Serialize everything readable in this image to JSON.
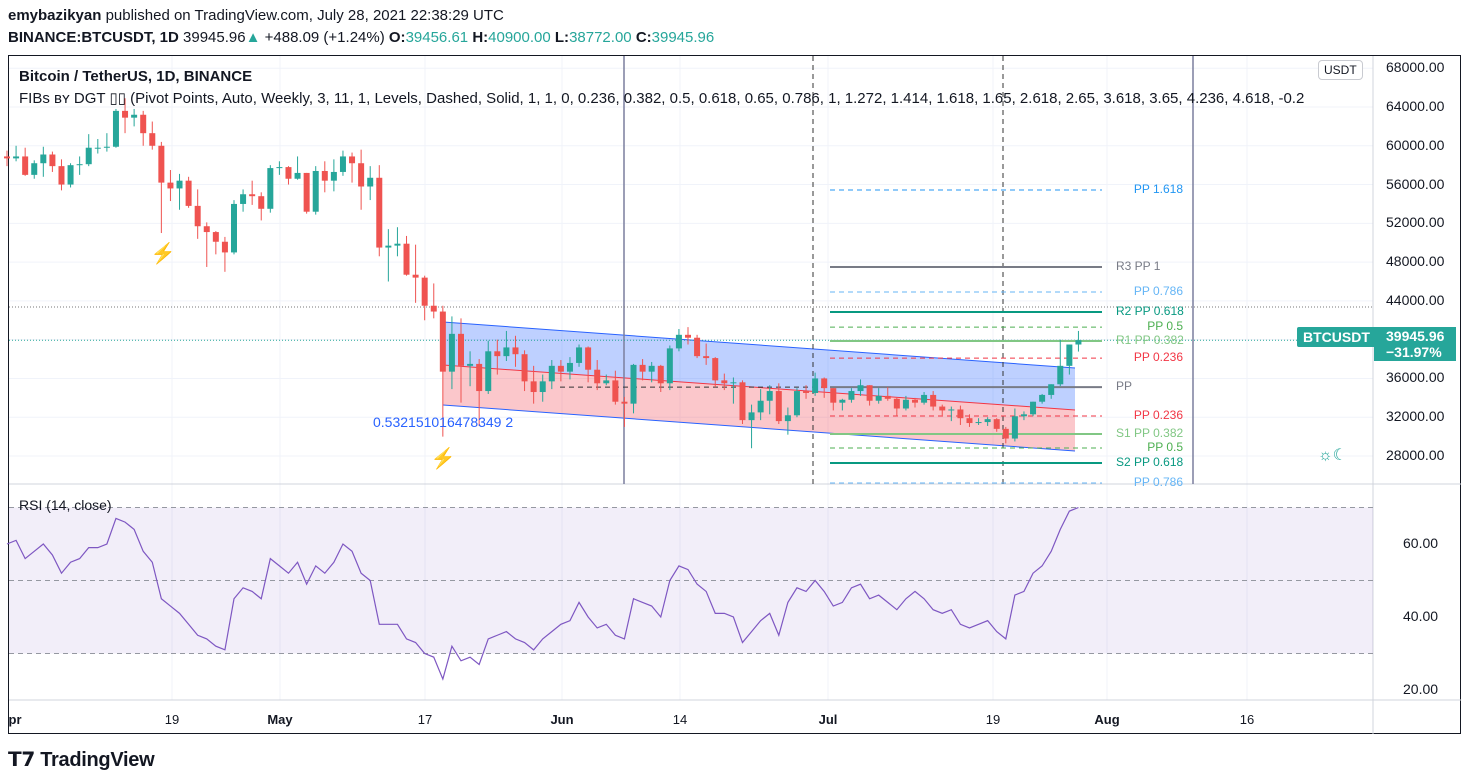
{
  "header": {
    "author": "emybazikyan",
    "published": "published on TradingView.com, July 28, 2021 22:38:29 UTC",
    "symbol": "BINANCE:BTCUSDT, 1D",
    "last": "39945.96",
    "change": "+488.09 (+1.24%)",
    "o_label": "O:",
    "o": "39456.61",
    "h_label": "H:",
    "h": "40900.00",
    "l_label": "L:",
    "l": "38772.00",
    "c_label": "C:",
    "c": "39945.96"
  },
  "chart_title": "Bitcoin / TetherUS, 1D, BINANCE",
  "indicator_legend": "FIBs ʙʏ DGT ▯▯ (Pivot Points, Auto, Weekly, 3, 11, 1, Levels, Dashed, Solid, 1, 1, 0, 0.236, 0.382, 0.5, 0.618, 0.65, 0.786, 1, 1.272, 1.414, 1.618, 1.65, 2.618, 2.65, 3.618, 3.65, 4.236, 4.618, -0.2",
  "rsi_legend": "RSI (14, close)",
  "currency_badge": "USDT",
  "price_label": {
    "symbol": "BTCUSDT",
    "price": "39945.96",
    "change_pct": "−31.97%"
  },
  "channel_ratio_label": "0.532151016478349 2",
  "logo": "TradingView",
  "colors": {
    "up": "#26a69a",
    "down": "#ef5350",
    "rsi": "#7e57c2",
    "channel_top": "#2962ff",
    "channel_bottom": "#ef5350"
  },
  "icons": [
    "lightning-icon",
    "lightning-icon",
    "sun-moon-icon"
  ],
  "chart_data": [
    {
      "type": "candlestick",
      "start_date": "2021-04-01",
      "first_open": 58900,
      "close": [
        58700,
        58900,
        57000,
        58200,
        59100,
        57900,
        56000,
        58000,
        58100,
        59800,
        59800,
        59900,
        63600,
        62900,
        63200,
        61300,
        60000,
        56200,
        55600,
        56400,
        53800,
        51700,
        51100,
        50100,
        49000,
        54000,
        55000,
        54800,
        53500,
        57700,
        57800,
        56600,
        57200,
        53200,
        57400,
        56400,
        57300,
        58900,
        58200,
        55800,
        56700,
        49500,
        49700,
        49900,
        46700,
        46400,
        43500,
        42900,
        36700,
        40600,
        37300,
        37500,
        34700,
        38800,
        38300,
        39200,
        38500,
        35700,
        34600,
        35700,
        37300,
        36700,
        37600,
        39200,
        36900,
        35500,
        35800,
        33600,
        33400,
        37400,
        36700,
        37300,
        35500,
        39100,
        40500,
        40200,
        38300,
        38100,
        35800,
        35500,
        35600,
        31700,
        32500,
        33700,
        34700,
        31600,
        32200,
        34700,
        34500,
        36000,
        35000,
        33500,
        33800,
        34700,
        35300,
        33700,
        34200,
        33900,
        32900,
        33800,
        33500,
        34300,
        33100,
        32700,
        32800,
        31900,
        31400,
        31500,
        31800,
        30800,
        29800,
        32100,
        32300,
        33600,
        34300,
        35400,
        37300,
        39500,
        39945.96
      ],
      "high": [
        59500,
        60000,
        59800,
        58500,
        59900,
        59400,
        58600,
        58200,
        58900,
        61200,
        60700,
        61300,
        63800,
        64900,
        63800,
        63600,
        62500,
        60400,
        57500,
        57100,
        56800,
        55500,
        52100,
        51200,
        50600,
        54400,
        55500,
        56400,
        55200,
        58000,
        58400,
        57900,
        58900,
        57200,
        57900,
        58400,
        58600,
        59500,
        59300,
        59600,
        57900,
        58000,
        51400,
        51600,
        50700,
        49800,
        46600,
        45800,
        43500,
        42400,
        42200,
        38800,
        38000,
        39900,
        40000,
        40900,
        40400,
        38900,
        37300,
        36400,
        37900,
        37900,
        38200,
        39500,
        39300,
        37900,
        36400,
        36800,
        34100,
        37500,
        38000,
        37700,
        37400,
        39400,
        41100,
        41300,
        40500,
        39600,
        38200,
        36500,
        36100,
        35800,
        33300,
        34900,
        35300,
        35500,
        33000,
        35000,
        35300,
        36600,
        36100,
        35000,
        33900,
        35000,
        35900,
        35300,
        35000,
        35100,
        34000,
        34200,
        34000,
        34600,
        34700,
        33300,
        33100,
        33200,
        32300,
        31900,
        32000,
        31900,
        31000,
        32900,
        32600,
        33600,
        34400,
        35400,
        40000,
        39500,
        40900
      ],
      "low": [
        57900,
        58400,
        56900,
        56600,
        56800,
        57300,
        55400,
        55700,
        57000,
        57900,
        59200,
        59400,
        59800,
        61300,
        62000,
        60000,
        59600,
        51000,
        54300,
        53400,
        53600,
        50400,
        47500,
        48800,
        47000,
        48800,
        53200,
        53900,
        52300,
        53100,
        57000,
        56000,
        56500,
        53000,
        52900,
        55200,
        55300,
        56900,
        56200,
        53400,
        54400,
        48600,
        46000,
        48600,
        46600,
        43800,
        42000,
        42200,
        30000,
        34900,
        33500,
        35200,
        31100,
        34400,
        36400,
        37800,
        37200,
        34700,
        33400,
        33600,
        34900,
        35700,
        35900,
        37200,
        35600,
        34800,
        35300,
        33300,
        31000,
        32400,
        35800,
        35600,
        34600,
        34800,
        38800,
        39500,
        38100,
        37400,
        35100,
        34800,
        33400,
        31300,
        28800,
        31700,
        32300,
        31300,
        30200,
        32000,
        33900,
        34200,
        34000,
        32700,
        32700,
        33500,
        34200,
        33200,
        33400,
        33700,
        32100,
        32700,
        33000,
        33300,
        32700,
        32200,
        31600,
        31200,
        31000,
        31200,
        31100,
        30500,
        29300,
        29500,
        31700,
        32100,
        33400,
        33900,
        35200,
        36400,
        38772
      ]
    },
    {
      "type": "line",
      "name": "RSI (14, close)",
      "start_date": "2021-04-01",
      "values": [
        60,
        61,
        56,
        58,
        60,
        57,
        52,
        55,
        56,
        59,
        59,
        60,
        67,
        66,
        64,
        58,
        55,
        45,
        43,
        41,
        38,
        35,
        34,
        32,
        31,
        45,
        48,
        47,
        45,
        56,
        54,
        52,
        55,
        49,
        54,
        52,
        55,
        60,
        58,
        52,
        50,
        38,
        38,
        38,
        34,
        33,
        30,
        29,
        23,
        32,
        28,
        29,
        27,
        34,
        35,
        36,
        34,
        33,
        31,
        34,
        36,
        38,
        39,
        44,
        40,
        37,
        38,
        35,
        34,
        45,
        44,
        43,
        40,
        50,
        54,
        53,
        49,
        47,
        41,
        41,
        40,
        33,
        36,
        39,
        41,
        35,
        44,
        48,
        47,
        50,
        47,
        43,
        44,
        48,
        49,
        45,
        46,
        44,
        42,
        45,
        47,
        45,
        42,
        41,
        42,
        38,
        37,
        38,
        39,
        36,
        34,
        46,
        47,
        52,
        54,
        58,
        64,
        69,
        70
      ],
      "bands": [
        70,
        30
      ],
      "midline": 50,
      "ylim": [
        15,
        75
      ],
      "y_ticks": [
        "60.00",
        "40.00",
        "20.00"
      ]
    }
  ],
  "price_axis": {
    "ticks": [
      "68000.00",
      "64000.00",
      "60000.00",
      "56000.00",
      "52000.00",
      "48000.00",
      "44000.00",
      "36000.00",
      "32000.00",
      "28000.00"
    ]
  },
  "time_axis": {
    "ticks": [
      "pr",
      "19",
      "May",
      "17",
      "Jun",
      "14",
      "Jul",
      "19",
      "Aug",
      "16"
    ]
  },
  "pivots": [
    {
      "label": "PP 1.618",
      "price": 55440,
      "color": "#2196f3",
      "style": "dashed"
    },
    {
      "label": "R3 PP 1",
      "price": 47500,
      "color": "#787b86",
      "style": "solid"
    },
    {
      "label": "PP 0.786",
      "price": 44920,
      "color": "#64b5f6",
      "style": "dashed"
    },
    {
      "label": "R2 PP 0.618",
      "price": 42850,
      "color": "#089981",
      "style": "solid"
    },
    {
      "label": "PP 0.5",
      "price": 41300,
      "color": "#4caf50",
      "style": "dashed"
    },
    {
      "label": "R1 PP 0.382",
      "price": 39860,
      "color": "#81c784",
      "style": "solid"
    },
    {
      "label": "PP 0.236",
      "price": 38100,
      "color": "#f23645",
      "style": "dashed"
    },
    {
      "label": "PP",
      "price": 35110,
      "color": "#787b86",
      "style": "solid"
    },
    {
      "label": "PP 0.236",
      "price": 32120,
      "color": "#f23645",
      "style": "dashed"
    },
    {
      "label": "S1 PP 0.382",
      "price": 30270,
      "color": "#81c784",
      "style": "solid"
    },
    {
      "label": "PP 0.5",
      "price": 28820,
      "color": "#4caf50",
      "style": "dashed"
    },
    {
      "label": "S2 PP 0.618",
      "price": 27280,
      "color": "#089981",
      "style": "solid"
    },
    {
      "label": "PP 0.786",
      "price": 25210,
      "color": "#64b5f6",
      "style": "dashed"
    }
  ]
}
